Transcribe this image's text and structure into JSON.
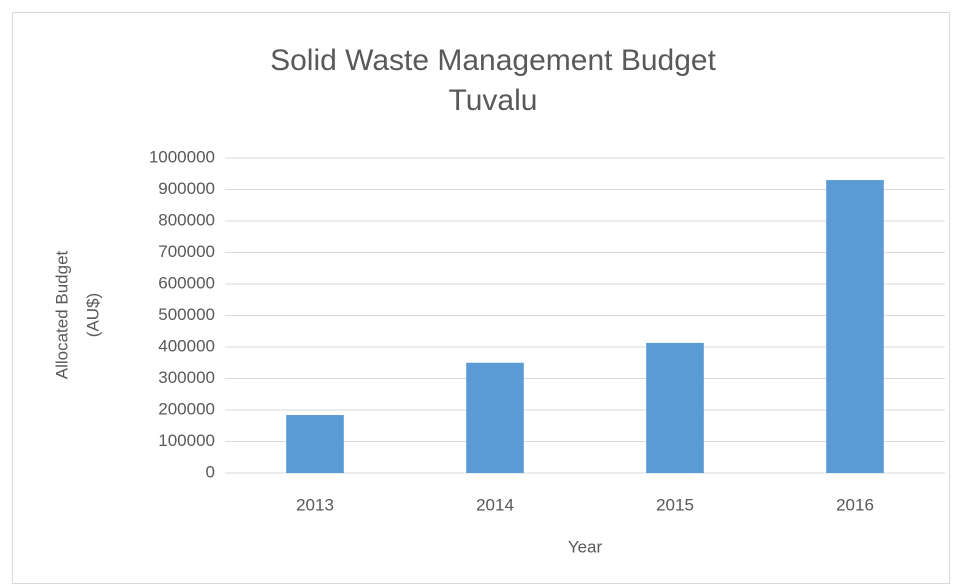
{
  "chart_data": {
    "type": "bar",
    "title": [
      "Solid Waste Management Budget",
      "Tuvalu"
    ],
    "x_label": "Year",
    "y_label": [
      "Allocated Budget",
      "(AU$)"
    ],
    "categories": [
      "2013",
      "2014",
      "2015",
      "2016"
    ],
    "values": [
      184000,
      350000,
      413000,
      930000
    ],
    "color": "#5b9bd5",
    "ylim": [
      0,
      1000000
    ],
    "yticks": [
      0,
      100000,
      200000,
      300000,
      400000,
      500000,
      600000,
      700000,
      800000,
      900000,
      1000000
    ],
    "grid": true
  }
}
